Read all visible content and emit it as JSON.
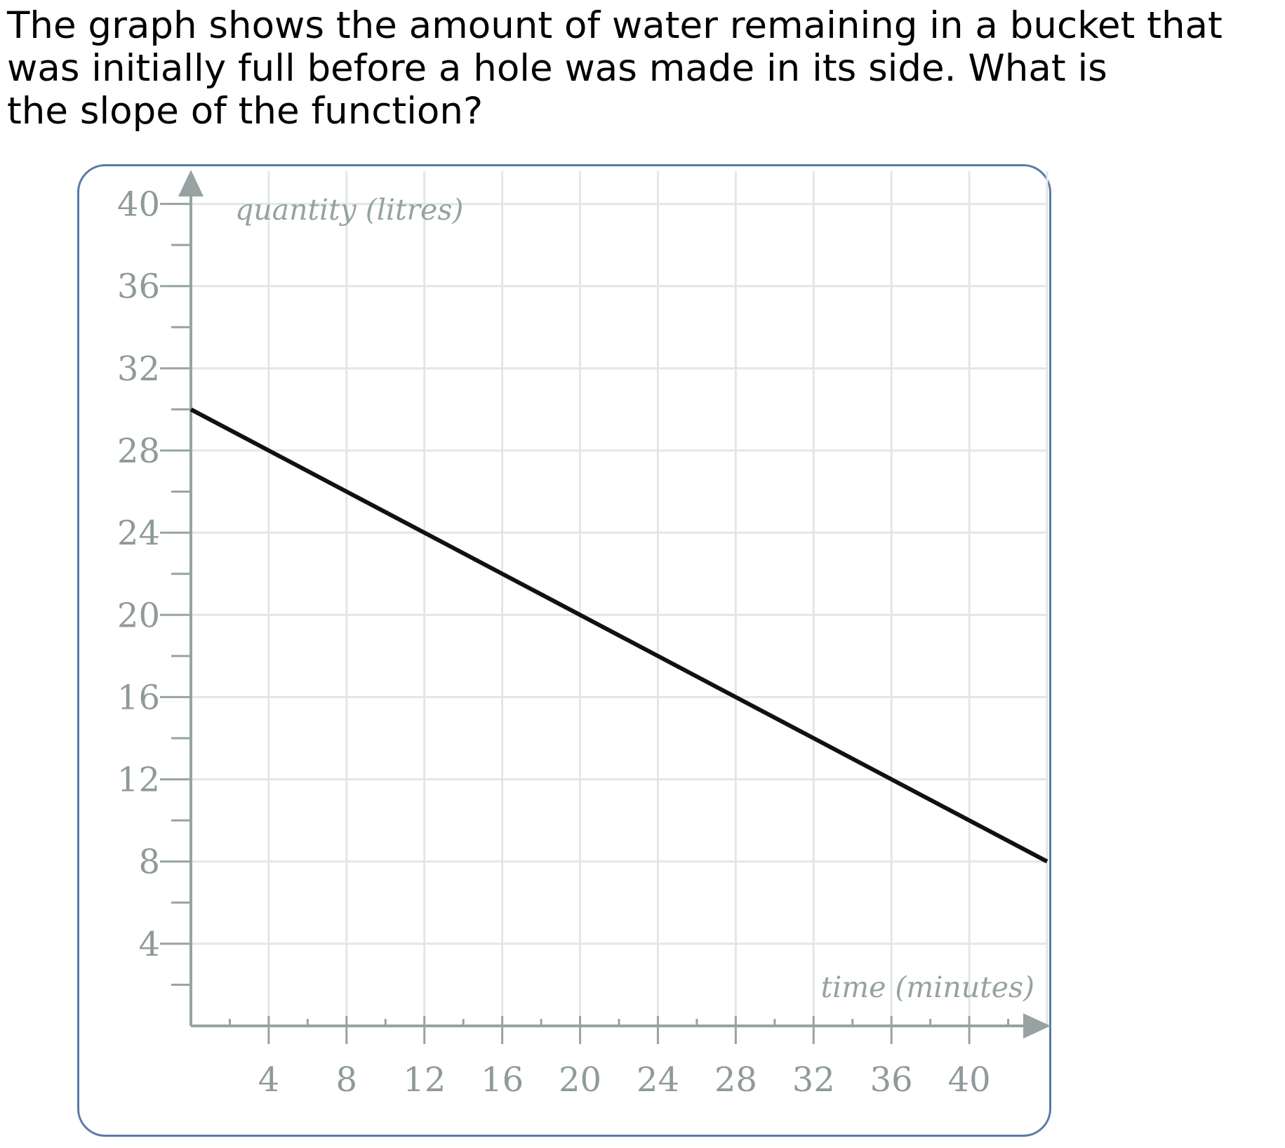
{
  "question": {
    "lines": [
      "The graph shows the amount of water remaining in a bucket that",
      "was initially full before a hole was made in its side. What is",
      "the slope of the function?"
    ]
  },
  "chart_data": {
    "type": "line",
    "xlabel": "time (minutes)",
    "ylabel": "quantity (litres)",
    "xlim": [
      0,
      44
    ],
    "ylim": [
      0,
      42
    ],
    "x_ticks": [
      4,
      8,
      12,
      16,
      20,
      24,
      28,
      32,
      36,
      40
    ],
    "y_ticks": [
      4,
      8,
      12,
      16,
      20,
      24,
      28,
      32,
      36,
      40
    ],
    "grid": true,
    "series": [
      {
        "x": [
          0,
          44
        ],
        "y": [
          30,
          8
        ],
        "color": "#111111"
      }
    ],
    "colors": {
      "axis": "#97a3a3",
      "grid": "#e3e6e6",
      "tick_text": "#8f9a9a",
      "frame": "#5a7aa6"
    }
  }
}
